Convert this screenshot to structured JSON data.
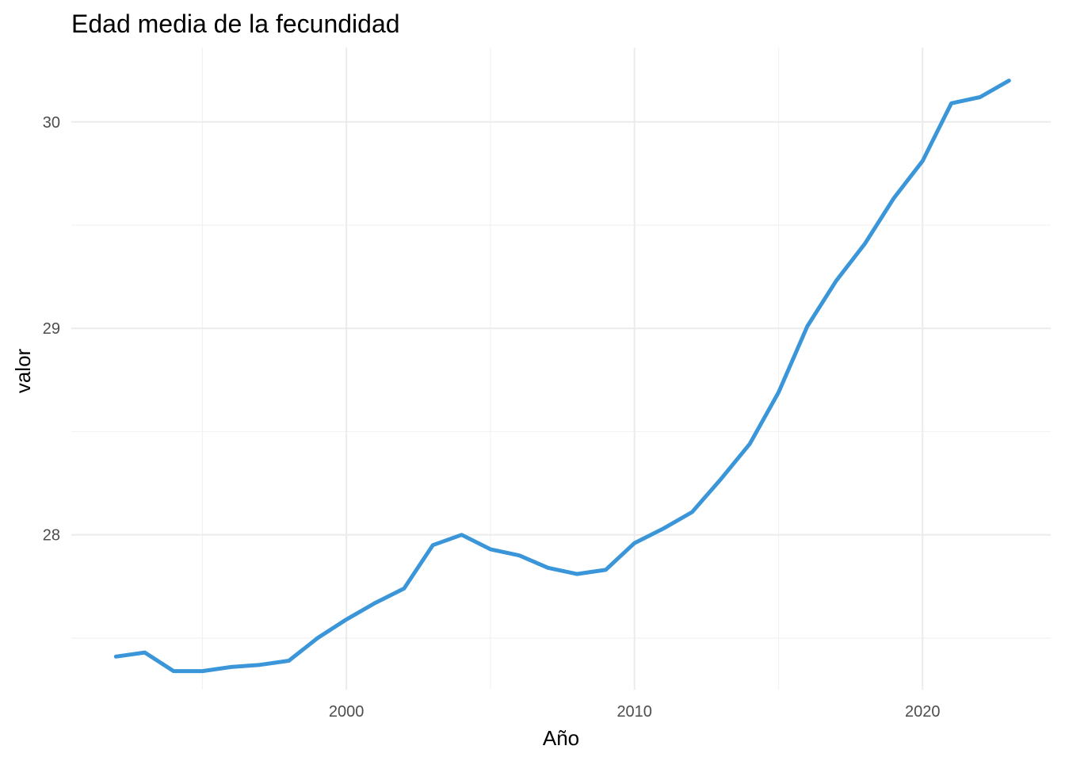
{
  "chart_data": {
    "type": "line",
    "title": "Edad media de la fecundidad",
    "xlabel": "Año",
    "ylabel": "valor",
    "x": [
      1992,
      1993,
      1994,
      1995,
      1996,
      1997,
      1998,
      1999,
      2000,
      2001,
      2002,
      2003,
      2004,
      2005,
      2006,
      2007,
      2008,
      2009,
      2010,
      2011,
      2012,
      2013,
      2014,
      2015,
      2016,
      2017,
      2018,
      2019,
      2020,
      2021,
      2022,
      2023
    ],
    "series": [
      {
        "color": "#3a96d8",
        "values": [
          27.41,
          27.43,
          27.34,
          27.34,
          27.36,
          27.37,
          27.39,
          27.5,
          27.59,
          27.67,
          27.74,
          27.95,
          28.0,
          27.93,
          27.9,
          27.84,
          27.81,
          27.83,
          27.96,
          28.03,
          28.11,
          28.27,
          28.44,
          28.69,
          29.01,
          29.23,
          29.41,
          29.63,
          29.81,
          30.09,
          30.12,
          30.2
        ]
      }
    ],
    "xlim": [
      1990.45,
      1317.0
    ],
    "ylim": [
      27.25,
      30.36
    ],
    "x_major_ticks": [
      2000,
      2010,
      2020
    ],
    "x_minor_ticks": [
      1995,
      2005,
      2015
    ],
    "y_major_ticks": [
      28,
      29,
      30
    ],
    "y_minor_ticks": [
      27.5,
      28.5,
      29.5
    ],
    "x_tick_labels": [
      "2000",
      "2010",
      "2020"
    ],
    "y_tick_labels": [
      "28",
      "29",
      "30"
    ],
    "grid": true,
    "legend": "none"
  }
}
